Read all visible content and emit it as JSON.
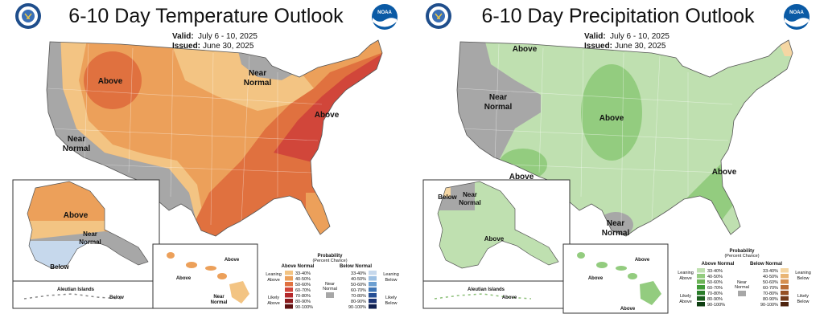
{
  "temperature": {
    "title": "6-10 Day Temperature Outlook",
    "valid_label": "Valid:",
    "valid": "July 6 - 10, 2025",
    "issued_label": "Issued:",
    "issued": "June 30, 2025",
    "regions": {
      "above_northwest": "Above",
      "near_normal_west": "Near",
      "near_normal_west_2": "Normal",
      "near_normal_north": "Near",
      "near_normal_north_2": "Normal",
      "above_east": "Above",
      "alaska_above": "Above",
      "alaska_near": "Near",
      "alaska_near_2": "Normal",
      "alaska_below": "Below",
      "aleutian_label": "Aleutian Islands",
      "aleutian_below": "Below",
      "hawaii_above_1": "Above",
      "hawaii_above_2": "Above",
      "hawaii_near": "Near",
      "hawaii_near_2": "Normal"
    },
    "legend": {
      "title": "Probability",
      "subtitle": "(Percent Chance)",
      "left_header": "Above Normal",
      "right_header": "Below Normal",
      "leaning_left": "Leaning",
      "leaning_left_2": "Above",
      "likely_left": "Likely",
      "likely_left_2": "Above",
      "leaning_right": "Leaning",
      "leaning_right_2": "Below",
      "likely_right": "Likely",
      "likely_right_2": "Below",
      "near_label": "Near",
      "near_label_2": "Normal",
      "ranges": [
        "33-40%",
        "40-50%",
        "50-60%",
        "60-70%",
        "70-80%",
        "80-90%",
        "90-100%"
      ],
      "left_colors": [
        "#f3c483",
        "#eca05a",
        "#e0713f",
        "#d1463a",
        "#b4272a",
        "#8a1a1d",
        "#5e1111"
      ],
      "right_colors": [
        "#c6d8ec",
        "#9cc0e3",
        "#6c9fd1",
        "#3f75b5",
        "#264f95",
        "#1b3373",
        "#10204f"
      ],
      "near_color": "#a7a7a7"
    }
  },
  "precipitation": {
    "title": "6-10 Day Precipitation Outlook",
    "valid_label": "Valid:",
    "valid": "July 6 - 10, 2025",
    "issued_label": "Issued:",
    "issued": "June 30, 2025",
    "regions": {
      "above_northwest": "Above",
      "near_normal_west": "Near",
      "near_normal_west_2": "Normal",
      "above_central": "Above",
      "above_southwest": "Above",
      "above_southeast": "Above",
      "near_normal_texas": "Near",
      "near_normal_texas_2": "Normal",
      "alaska_below": "Below",
      "alaska_near": "Near",
      "alaska_near_2": "Normal",
      "alaska_above": "Above",
      "aleutian_label": "Aleutian Islands",
      "aleutian_above": "Above",
      "hawaii_above_1": "Above",
      "hawaii_above_2": "Above",
      "hawaii_above_3": "Above"
    },
    "legend": {
      "title": "Probability",
      "subtitle": "(Percent Chance)",
      "left_header": "Above Normal",
      "right_header": "Below Normal",
      "leaning_left": "Leaning",
      "leaning_left_2": "Above",
      "likely_left": "Likely",
      "likely_left_2": "Above",
      "leaning_right": "Leaning",
      "leaning_right_2": "Below",
      "likely_right": "Likely",
      "likely_right_2": "Below",
      "near_label": "Near",
      "near_label_2": "Normal",
      "ranges": [
        "33-40%",
        "40-50%",
        "50-60%",
        "60-70%",
        "70-80%",
        "80-90%",
        "90-100%"
      ],
      "left_colors": [
        "#bfe0b0",
        "#93cc7f",
        "#6cb457",
        "#3f9a37",
        "#2a7d2a",
        "#1b5e1e",
        "#0f3f12"
      ],
      "right_colors": [
        "#f5d6a3",
        "#e9b574",
        "#d68f4f",
        "#b96c34",
        "#965024",
        "#733a1a",
        "#4f2510"
      ],
      "near_color": "#a7a7a7"
    }
  }
}
